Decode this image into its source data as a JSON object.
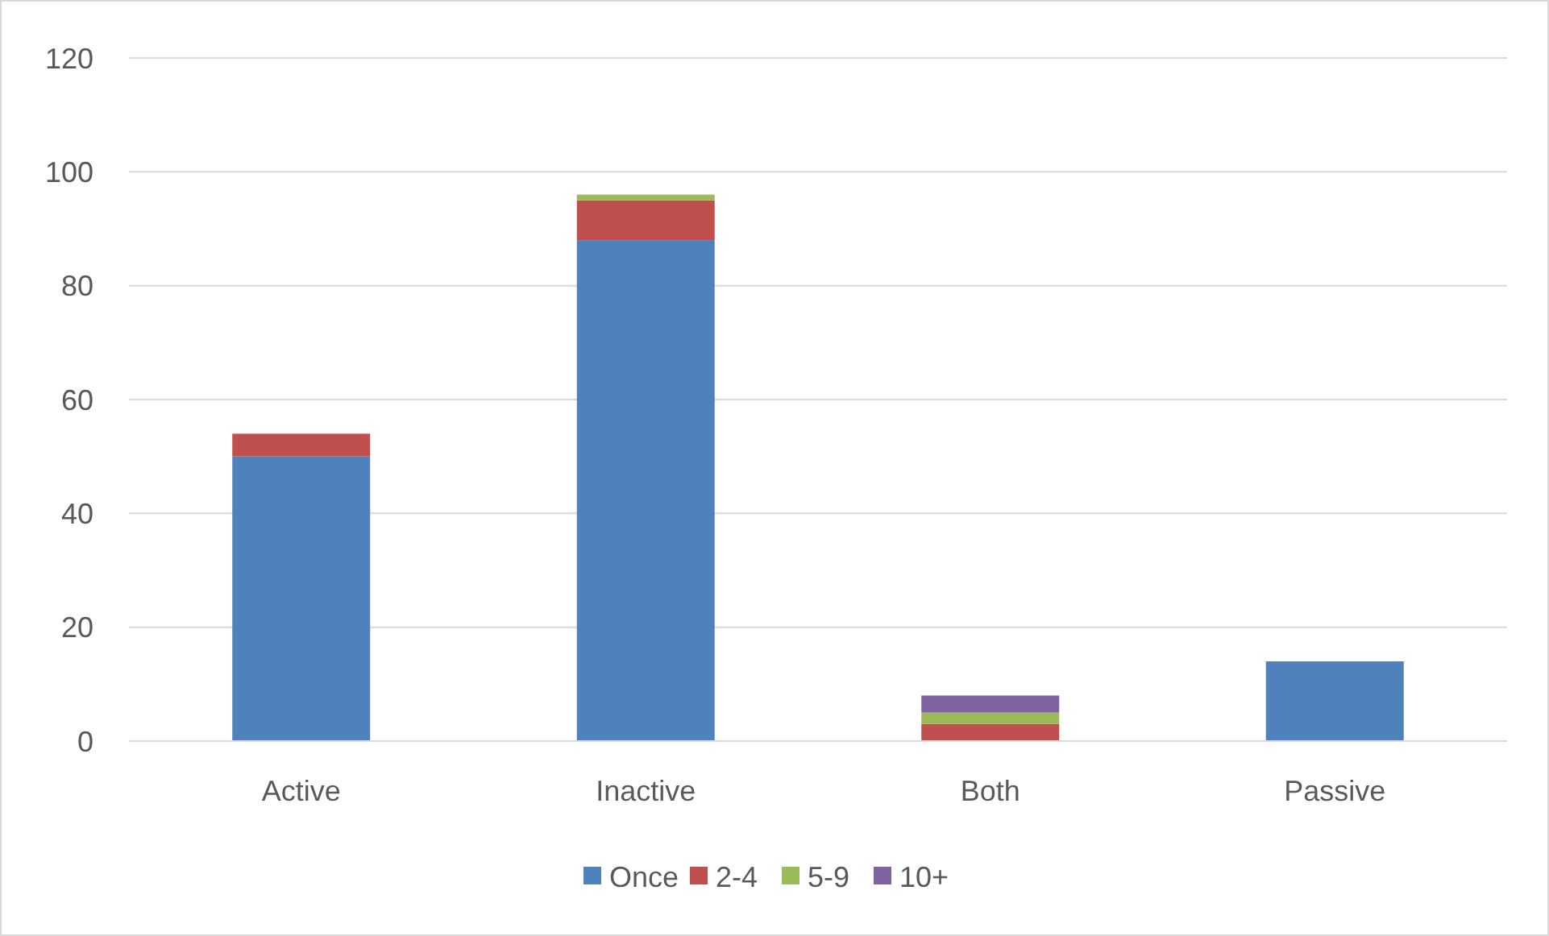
{
  "chart_data": {
    "type": "bar",
    "stacked": true,
    "categories": [
      "Active",
      "Inactive",
      "Both",
      "Passive"
    ],
    "series": [
      {
        "name": "Once",
        "color": "#4f81bd",
        "values": [
          50,
          88,
          0,
          14
        ]
      },
      {
        "name": "2-4",
        "color": "#c0504d",
        "values": [
          4,
          7,
          3,
          0
        ]
      },
      {
        "name": "5-9",
        "color": "#9bbb59",
        "values": [
          0,
          1,
          2,
          0
        ]
      },
      {
        "name": "10+",
        "color": "#8064a2",
        "values": [
          0,
          0,
          3,
          0
        ]
      }
    ],
    "ylim": [
      0,
      120
    ],
    "yticks": [
      0,
      20,
      40,
      60,
      80,
      100,
      120
    ],
    "grid": "y",
    "legend": "bottom"
  }
}
